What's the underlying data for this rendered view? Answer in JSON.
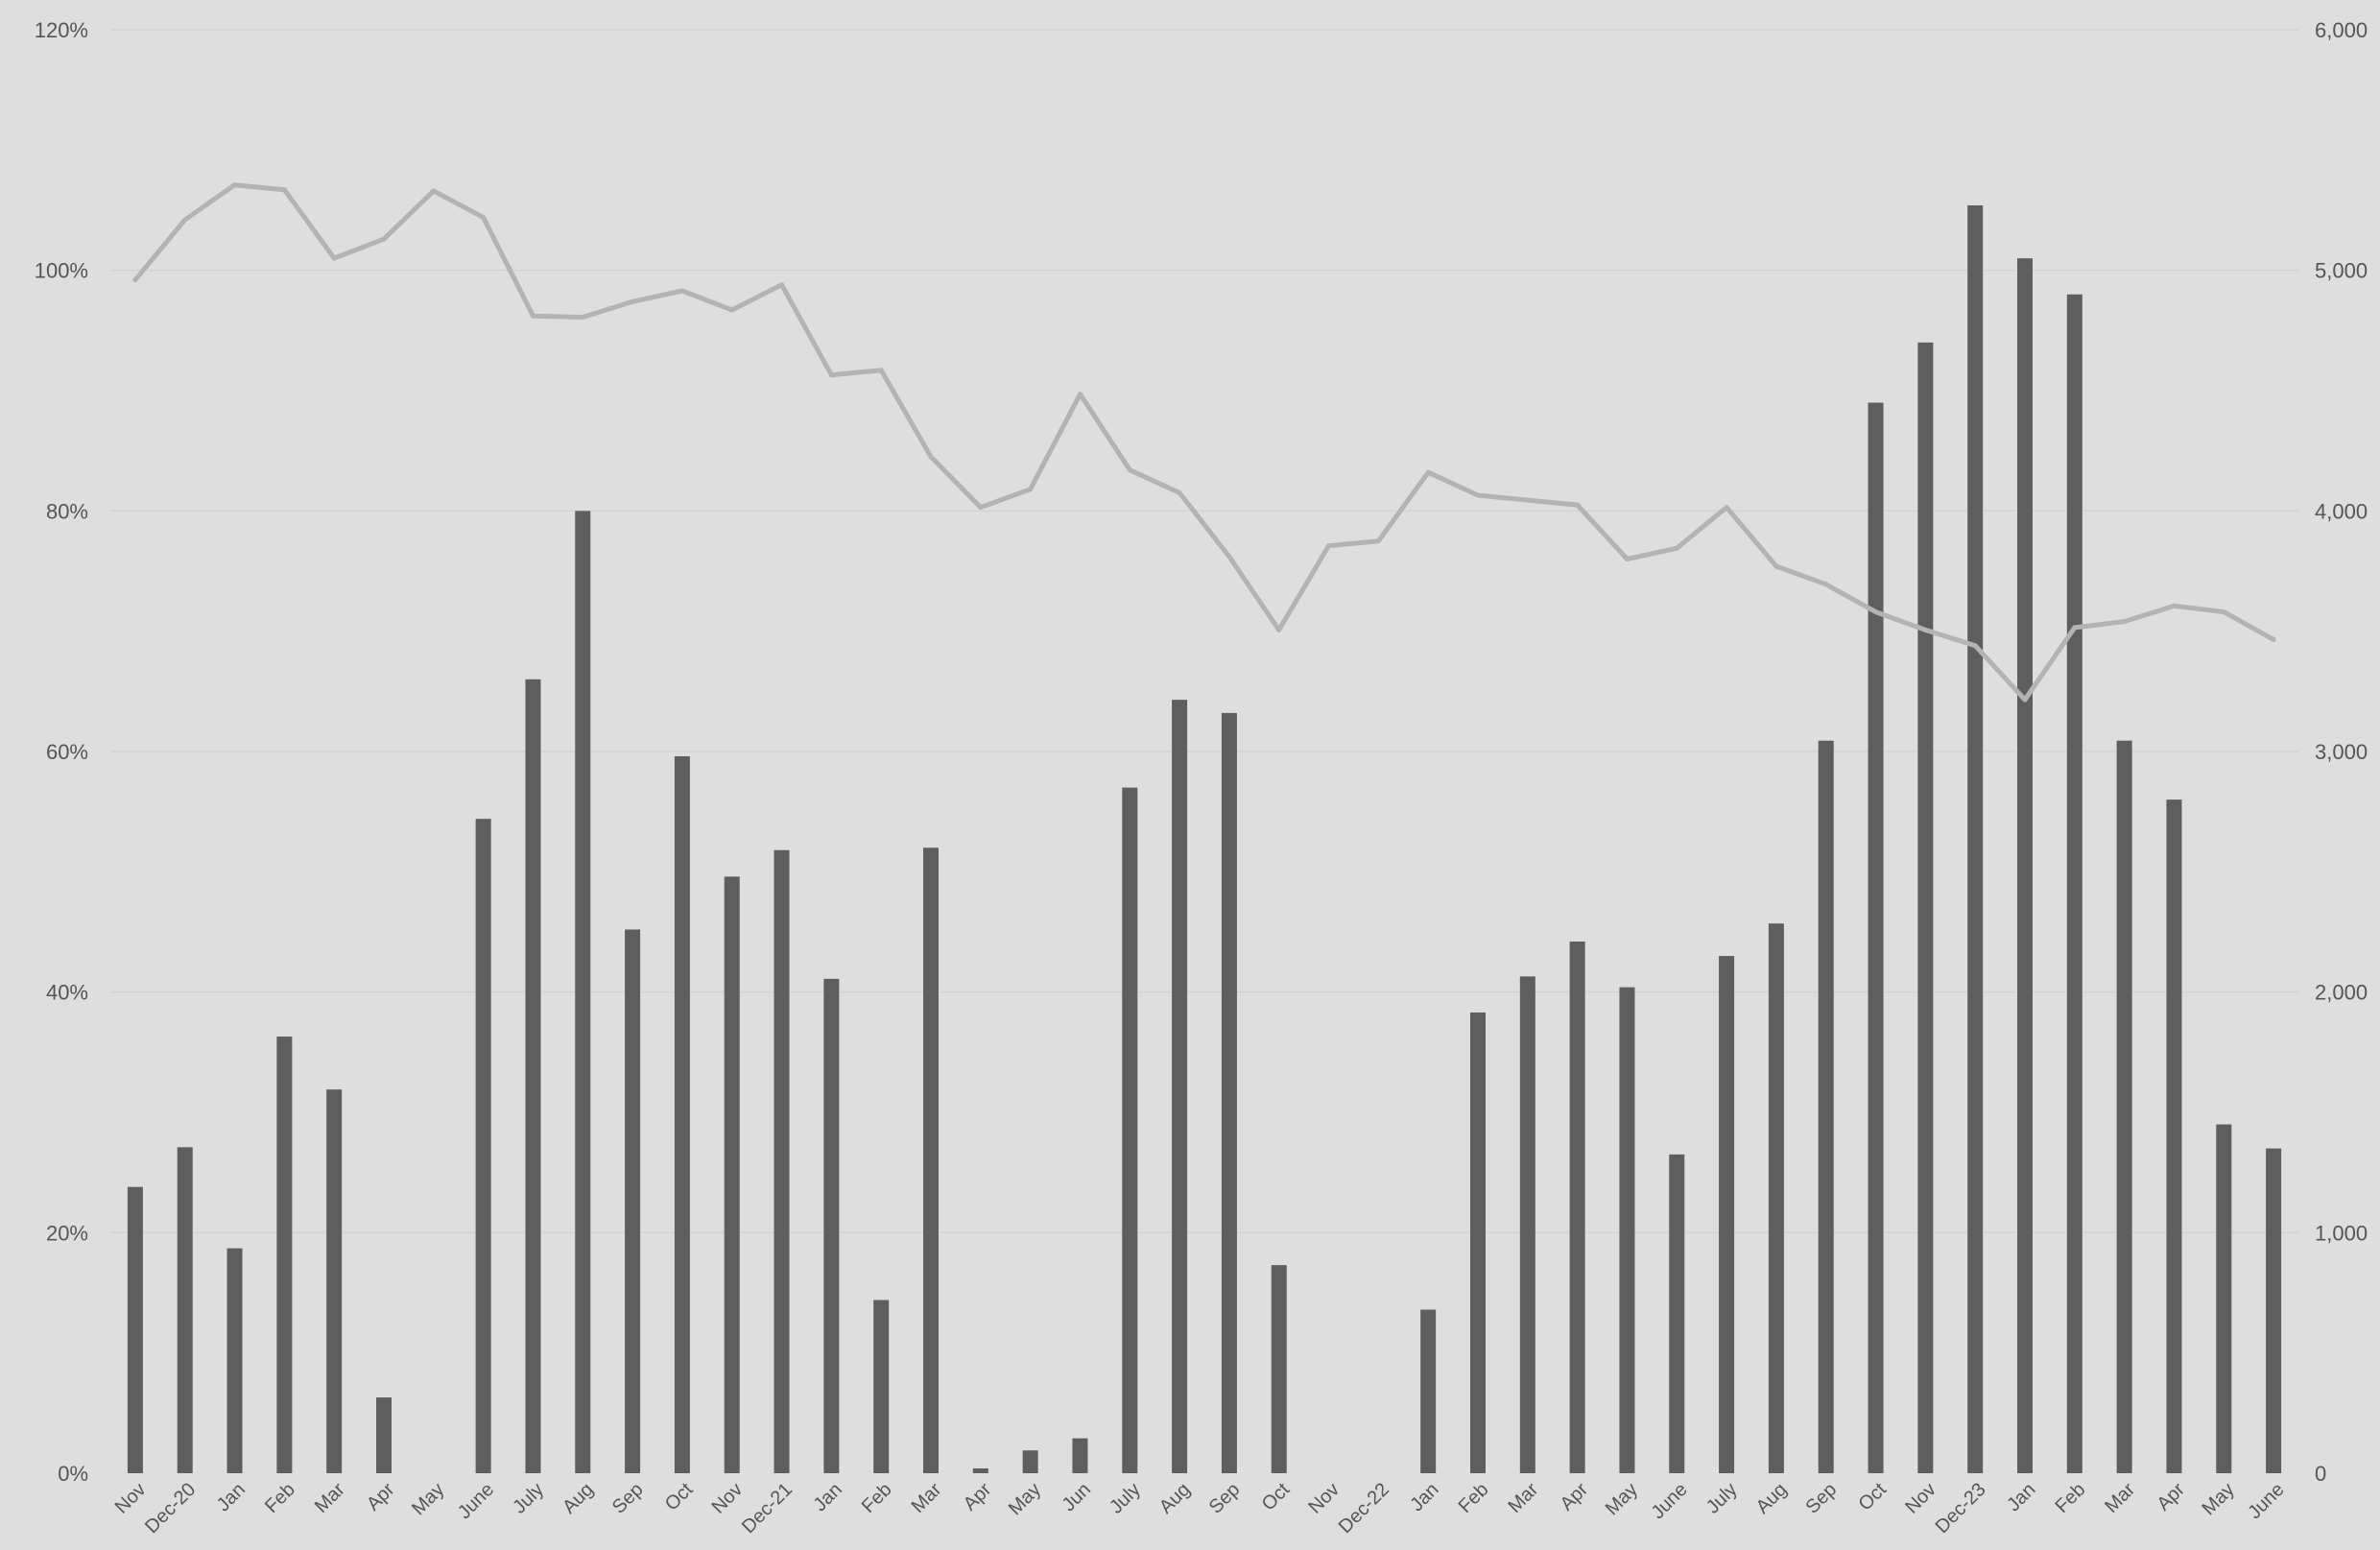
{
  "chart_data": {
    "type": "bar",
    "title": "",
    "xlabel": "",
    "ylabel": "",
    "y2label": "",
    "grid": true,
    "legend": "none",
    "categories": [
      "Nov",
      "Dec-20",
      "Jan",
      "Feb",
      "Mar",
      "Apr",
      "May",
      "June",
      "July",
      "Aug",
      "Sep",
      "Oct",
      "Nov",
      "Dec-21",
      "Jan",
      "Feb",
      "Mar",
      "Apr",
      "May",
      "Jun",
      "July",
      "Aug",
      "Sep",
      "Oct",
      "Nov",
      "Dec-22",
      "Jan",
      "Feb",
      "Mar",
      "Apr",
      "May",
      "June",
      "July",
      "Aug",
      "Sep",
      "Oct",
      "Nov",
      "Dec-23",
      "Jan",
      "Feb",
      "Mar",
      "Apr",
      "May",
      "June"
    ],
    "left_axis": {
      "ylim": [
        0,
        1.2
      ],
      "ticks": [
        "0%",
        "20%",
        "40%",
        "60%",
        "80%",
        "100%",
        "120%"
      ]
    },
    "right_axis": {
      "ylim": [
        0,
        6000
      ],
      "ticks": [
        "0",
        "1,000",
        "2,000",
        "3,000",
        "4,000",
        "5,000",
        "6,000"
      ]
    },
    "series": [
      {
        "type": "bar",
        "axis": "right",
        "values": [
          1190,
          1355,
          935,
          1815,
          1595,
          315,
          0,
          2720,
          3300,
          4000,
          2260,
          2980,
          2480,
          2590,
          2055,
          720,
          2600,
          20,
          95,
          145,
          2850,
          3215,
          3160,
          865,
          0,
          0,
          680,
          1915,
          2065,
          2210,
          2020,
          1325,
          2150,
          2285,
          3045,
          4450,
          4700,
          5270,
          5050,
          4900,
          3045,
          2800,
          1450,
          1350
        ],
        "color": "#5e5e5e"
      },
      {
        "type": "line",
        "axis": "left",
        "values": [
          0.992,
          1.042,
          1.071,
          1.067,
          1.01,
          1.026,
          1.066,
          1.044,
          0.962,
          0.961,
          0.974,
          0.983,
          0.967,
          0.988,
          0.913,
          0.917,
          0.845,
          0.803,
          0.818,
          0.897,
          0.834,
          0.815,
          0.762,
          0.701,
          0.771,
          0.775,
          0.832,
          0.813,
          0.809,
          0.805,
          0.76,
          0.769,
          0.803,
          0.754,
          0.739,
          0.716,
          0.701,
          0.688,
          0.643,
          0.703,
          0.708,
          0.721,
          0.716,
          0.693
        ],
        "color": "#b3b3b3"
      }
    ]
  }
}
